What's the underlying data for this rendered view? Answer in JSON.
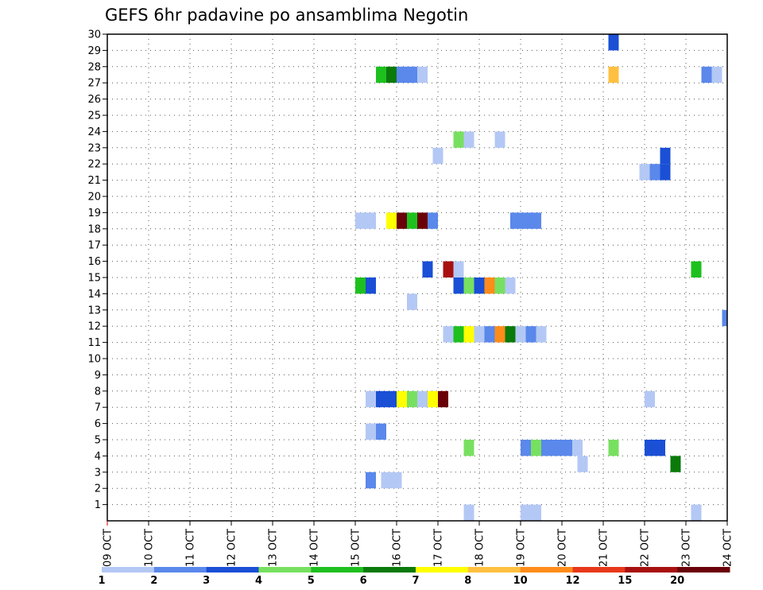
{
  "chart_data": {
    "type": "heatmap",
    "title": "GEFS 6hr padavine po ansamblima Negotin",
    "xlabel": "",
    "ylabel": "",
    "x_tick_labels": [
      "09 OCT",
      "10 OCT",
      "11 OCT",
      "12 OCT",
      "13 OCT",
      "14 OCT",
      "15 OCT",
      "16 OCT",
      "17 OCT",
      "18 OCT",
      "19 OCT",
      "20 OCT",
      "21 OCT",
      "22 OCT",
      "23 OCT",
      "24 OCT"
    ],
    "xlim": [
      0,
      60
    ],
    "x_unit": "6-hour steps from 09 OCT",
    "y_tick_labels": [
      "1",
      "2",
      "3",
      "4",
      "5",
      "6",
      "7",
      "8",
      "9",
      "10",
      "11",
      "12",
      "13",
      "14",
      "15",
      "16",
      "17",
      "18",
      "19",
      "20",
      "21",
      "22",
      "23",
      "24",
      "25",
      "26",
      "27",
      "28",
      "29",
      "30"
    ],
    "ylim": [
      0,
      30
    ],
    "grid": true,
    "legend": {
      "placement": "bottom",
      "labels": [
        "1",
        "2",
        "3",
        "4",
        "5",
        "6",
        "7",
        "8",
        "10",
        "12",
        "15",
        "20"
      ],
      "colors": [
        "#b4c8f5",
        "#5a88eb",
        "#1a4fd6",
        "#78e060",
        "#1ec01e",
        "#0a7a0a",
        "#ffff00",
        "#ffc040",
        "#ff8c1a",
        "#e8381a",
        "#a81010",
        "#6a0008"
      ]
    },
    "cells": [
      {
        "x": 49,
        "y": 29.5,
        "v": 3
      },
      {
        "x": 26.5,
        "y": 27.5,
        "v": 5
      },
      {
        "x": 27.5,
        "y": 27.5,
        "v": 6
      },
      {
        "x": 28.5,
        "y": 27.5,
        "v": 2
      },
      {
        "x": 29.5,
        "y": 27.5,
        "v": 2
      },
      {
        "x": 30.5,
        "y": 27.5,
        "v": 1
      },
      {
        "x": 49,
        "y": 27.5,
        "v": 8
      },
      {
        "x": 58,
        "y": 27.5,
        "v": 2
      },
      {
        "x": 59,
        "y": 27.5,
        "v": 1
      },
      {
        "x": 34,
        "y": 23.5,
        "v": 4
      },
      {
        "x": 35,
        "y": 23.5,
        "v": 1
      },
      {
        "x": 38,
        "y": 23.5,
        "v": 1
      },
      {
        "x": 32,
        "y": 22.5,
        "v": 1
      },
      {
        "x": 54,
        "y": 22.5,
        "v": 3
      },
      {
        "x": 52,
        "y": 21.5,
        "v": 1
      },
      {
        "x": 53,
        "y": 21.5,
        "v": 2
      },
      {
        "x": 54,
        "y": 21.5,
        "v": 3
      },
      {
        "x": 24.5,
        "y": 18.5,
        "v": 1
      },
      {
        "x": 25.5,
        "y": 18.5,
        "v": 1
      },
      {
        "x": 27.5,
        "y": 18.5,
        "v": 7
      },
      {
        "x": 28.5,
        "y": 18.5,
        "v": 20
      },
      {
        "x": 29.5,
        "y": 18.5,
        "v": 5
      },
      {
        "x": 30.5,
        "y": 18.5,
        "v": 20
      },
      {
        "x": 31.5,
        "y": 18.5,
        "v": 2
      },
      {
        "x": 39.5,
        "y": 18.5,
        "v": 2
      },
      {
        "x": 40.5,
        "y": 18.5,
        "v": 2
      },
      {
        "x": 41.5,
        "y": 18.5,
        "v": 2
      },
      {
        "x": 31,
        "y": 15.5,
        "v": 3
      },
      {
        "x": 33,
        "y": 15.5,
        "v": 15
      },
      {
        "x": 34,
        "y": 15.5,
        "v": 1
      },
      {
        "x": 57,
        "y": 15.5,
        "v": 5
      },
      {
        "x": 24.5,
        "y": 14.5,
        "v": 5
      },
      {
        "x": 25.5,
        "y": 14.5,
        "v": 3
      },
      {
        "x": 34,
        "y": 14.5,
        "v": 3
      },
      {
        "x": 35,
        "y": 14.5,
        "v": 4
      },
      {
        "x": 36,
        "y": 14.5,
        "v": 3
      },
      {
        "x": 37,
        "y": 14.5,
        "v": 10
      },
      {
        "x": 38,
        "y": 14.5,
        "v": 4
      },
      {
        "x": 39,
        "y": 14.5,
        "v": 1
      },
      {
        "x": 29.5,
        "y": 13.5,
        "v": 1
      },
      {
        "x": 60,
        "y": 12.5,
        "v": 2
      },
      {
        "x": 33,
        "y": 11.5,
        "v": 1
      },
      {
        "x": 34,
        "y": 11.5,
        "v": 5
      },
      {
        "x": 35,
        "y": 11.5,
        "v": 7
      },
      {
        "x": 36,
        "y": 11.5,
        "v": 1
      },
      {
        "x": 37,
        "y": 11.5,
        "v": 2
      },
      {
        "x": 38,
        "y": 11.5,
        "v": 10
      },
      {
        "x": 39,
        "y": 11.5,
        "v": 6
      },
      {
        "x": 40,
        "y": 11.5,
        "v": 1
      },
      {
        "x": 41,
        "y": 11.5,
        "v": 2
      },
      {
        "x": 42,
        "y": 11.5,
        "v": 1
      },
      {
        "x": 25.5,
        "y": 7.5,
        "v": 1
      },
      {
        "x": 26.5,
        "y": 7.5,
        "v": 3
      },
      {
        "x": 27.5,
        "y": 7.5,
        "v": 3
      },
      {
        "x": 28.5,
        "y": 7.5,
        "v": 7
      },
      {
        "x": 29.5,
        "y": 7.5,
        "v": 4
      },
      {
        "x": 30.5,
        "y": 7.5,
        "v": 1
      },
      {
        "x": 31.5,
        "y": 7.5,
        "v": 7
      },
      {
        "x": 32.5,
        "y": 7.5,
        "v": 20
      },
      {
        "x": 52.5,
        "y": 7.5,
        "v": 1
      },
      {
        "x": 25.5,
        "y": 5.5,
        "v": 1
      },
      {
        "x": 26.5,
        "y": 5.5,
        "v": 2
      },
      {
        "x": 35,
        "y": 4.5,
        "v": 4
      },
      {
        "x": 40.5,
        "y": 4.5,
        "v": 2
      },
      {
        "x": 41.5,
        "y": 4.5,
        "v": 4
      },
      {
        "x": 42.5,
        "y": 4.5,
        "v": 2
      },
      {
        "x": 43.5,
        "y": 4.5,
        "v": 2
      },
      {
        "x": 44.5,
        "y": 4.5,
        "v": 2
      },
      {
        "x": 45.5,
        "y": 4.5,
        "v": 1
      },
      {
        "x": 49,
        "y": 4.5,
        "v": 4
      },
      {
        "x": 52.5,
        "y": 4.5,
        "v": 3
      },
      {
        "x": 53.5,
        "y": 4.5,
        "v": 3
      },
      {
        "x": 46,
        "y": 3.5,
        "v": 1
      },
      {
        "x": 55,
        "y": 3.5,
        "v": 6
      },
      {
        "x": 25.5,
        "y": 2.5,
        "v": 2
      },
      {
        "x": 27,
        "y": 2.5,
        "v": 1
      },
      {
        "x": 28,
        "y": 2.5,
        "v": 1
      },
      {
        "x": 35,
        "y": 0.5,
        "v": 1
      },
      {
        "x": 40.5,
        "y": 0.5,
        "v": 1
      },
      {
        "x": 41.5,
        "y": 0.5,
        "v": 1
      },
      {
        "x": 57,
        "y": 0.5,
        "v": 1
      }
    ]
  }
}
